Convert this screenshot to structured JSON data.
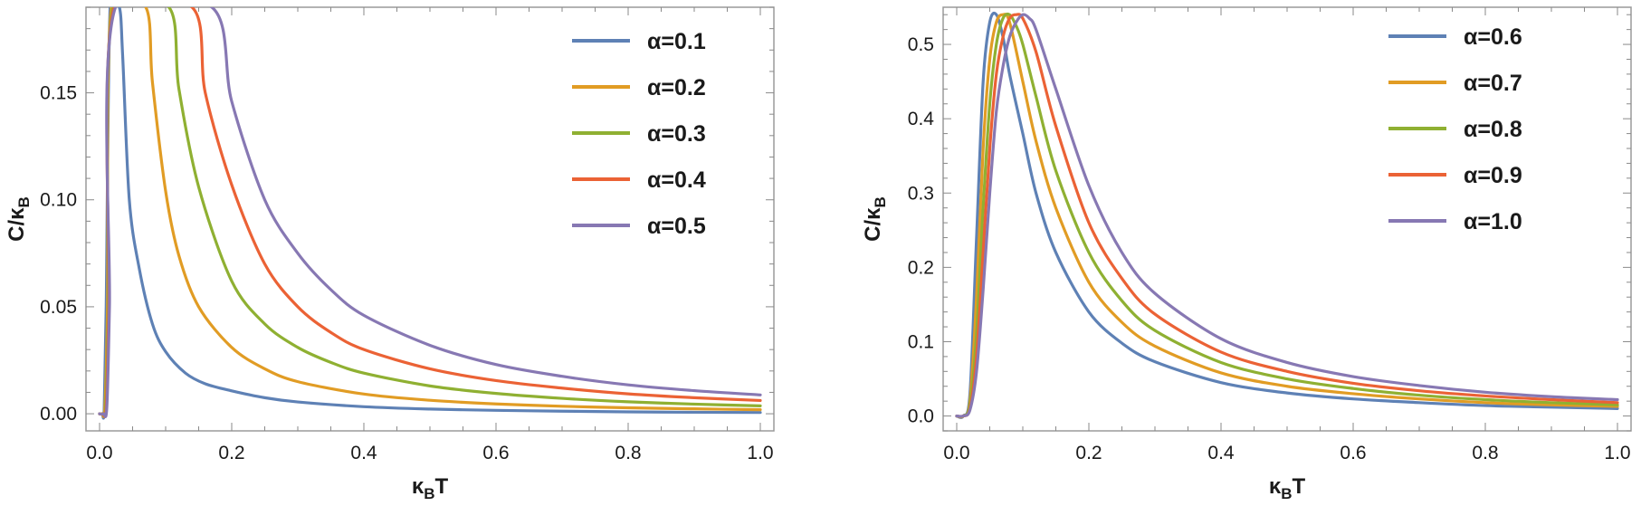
{
  "chart_data": [
    {
      "type": "line",
      "title": "",
      "xlabel": "κBT",
      "ylabel": "C/κB",
      "xlim": [
        0,
        1.0
      ],
      "ylim": [
        -0.008,
        0.19
      ],
      "xticks": [
        0.0,
        0.2,
        0.4,
        0.6,
        0.8,
        1.0
      ],
      "xtick_labels": [
        "0.0",
        "0.2",
        "0.4",
        "0.6",
        "0.8",
        "1.0"
      ],
      "yticks": [
        0.0,
        0.05,
        0.1,
        0.15
      ],
      "ytick_labels": [
        "0.00",
        "0.05",
        "0.10",
        "0.15"
      ],
      "grid": false,
      "legend_position": "top-right",
      "series": [
        {
          "name": "α=0.1",
          "color": "#5E81B5",
          "x": [
            0,
            0.004,
            0.007,
            0.01,
            0.016,
            0.03,
            0.035,
            0.045,
            0.06,
            0.08,
            0.1,
            0.13,
            0.16,
            0.2,
            0.25,
            0.3,
            0.4,
            0.5,
            0.6,
            0.7,
            0.8,
            0.9,
            1.0
          ],
          "y": [
            0,
            0,
            0.002,
            0.05,
            0.19,
            0.19,
            0.167,
            0.1,
            0.068,
            0.042,
            0.029,
            0.019,
            0.014,
            0.0107,
            0.0075,
            0.0055,
            0.0033,
            0.0022,
            0.0016,
            0.0012,
            0.0009,
            0.0007,
            0.0006
          ]
        },
        {
          "name": "α=0.2",
          "color": "#E19C24",
          "x": [
            0,
            0.004,
            0.008,
            0.012,
            0.018,
            0.07,
            0.08,
            0.1,
            0.12,
            0.15,
            0.2,
            0.25,
            0.3,
            0.4,
            0.5,
            0.6,
            0.7,
            0.8,
            0.9,
            1.0
          ],
          "y": [
            0,
            0,
            0.003,
            0.05,
            0.19,
            0.19,
            0.155,
            0.104,
            0.074,
            0.05,
            0.031,
            0.021,
            0.015,
            0.0092,
            0.0063,
            0.0046,
            0.0035,
            0.0028,
            0.0023,
            0.0019
          ]
        },
        {
          "name": "α=0.3",
          "color": "#8FB032",
          "x": [
            0,
            0.005,
            0.009,
            0.013,
            0.02,
            0.105,
            0.12,
            0.15,
            0.2,
            0.25,
            0.3,
            0.35,
            0.4,
            0.5,
            0.6,
            0.7,
            0.8,
            0.9,
            1.0
          ],
          "y": [
            0,
            0,
            0.003,
            0.05,
            0.19,
            0.19,
            0.152,
            0.106,
            0.062,
            0.042,
            0.031,
            0.024,
            0.019,
            0.013,
            0.0095,
            0.0072,
            0.0056,
            0.0045,
            0.0037
          ]
        },
        {
          "name": "α=0.4",
          "color": "#EB6235",
          "x": [
            0,
            0.005,
            0.01,
            0.014,
            0.022,
            0.14,
            0.16,
            0.2,
            0.25,
            0.3,
            0.35,
            0.4,
            0.5,
            0.6,
            0.7,
            0.8,
            0.9,
            1.0
          ],
          "y": [
            0,
            0,
            0.003,
            0.05,
            0.19,
            0.19,
            0.15,
            0.107,
            0.07,
            0.05,
            0.038,
            0.03,
            0.021,
            0.0155,
            0.012,
            0.0093,
            0.0075,
            0.0062
          ]
        },
        {
          "name": "α=0.5",
          "color": "#8778B3",
          "x": [
            0,
            0.006,
            0.011,
            0.015,
            0.024,
            0.17,
            0.2,
            0.25,
            0.3,
            0.35,
            0.4,
            0.5,
            0.6,
            0.7,
            0.8,
            0.9,
            1.0
          ],
          "y": [
            0,
            0,
            0.003,
            0.05,
            0.19,
            0.19,
            0.146,
            0.1,
            0.075,
            0.058,
            0.046,
            0.032,
            0.023,
            0.0175,
            0.0135,
            0.0108,
            0.0088
          ]
        }
      ]
    },
    {
      "type": "line",
      "title": "",
      "xlabel": "κBT",
      "ylabel": "C/κB",
      "xlim": [
        0,
        1.0
      ],
      "ylim": [
        -0.02,
        0.55
      ],
      "xticks": [
        0.0,
        0.2,
        0.4,
        0.6,
        0.8,
        1.0
      ],
      "xtick_labels": [
        "0.0",
        "0.2",
        "0.4",
        "0.6",
        "0.8",
        "1.0"
      ],
      "yticks": [
        0.0,
        0.1,
        0.2,
        0.3,
        0.4,
        0.5
      ],
      "ytick_labels": [
        "0.0",
        "0.1",
        "0.2",
        "0.3",
        "0.4",
        "0.5"
      ],
      "grid": false,
      "legend_position": "top-right",
      "series": [
        {
          "name": "α=0.6",
          "color": "#5E81B5",
          "x": [
            0,
            0.01,
            0.02,
            0.03,
            0.04,
            0.05,
            0.06,
            0.07,
            0.08,
            0.1,
            0.12,
            0.15,
            0.2,
            0.25,
            0.3,
            0.4,
            0.5,
            0.6,
            0.7,
            0.8,
            0.9,
            1.0
          ],
          "y": [
            0,
            0,
            0.03,
            0.24,
            0.45,
            0.53,
            0.54,
            0.51,
            0.46,
            0.38,
            0.3,
            0.22,
            0.14,
            0.098,
            0.073,
            0.045,
            0.031,
            0.023,
            0.018,
            0.014,
            0.012,
            0.01
          ]
        },
        {
          "name": "α=0.7",
          "color": "#E19C24",
          "x": [
            0,
            0.01,
            0.02,
            0.03,
            0.04,
            0.05,
            0.06,
            0.07,
            0.08,
            0.1,
            0.12,
            0.15,
            0.2,
            0.25,
            0.3,
            0.4,
            0.5,
            0.6,
            0.7,
            0.8,
            0.9,
            1.0
          ],
          "y": [
            0,
            0,
            0.02,
            0.16,
            0.36,
            0.48,
            0.53,
            0.54,
            0.53,
            0.45,
            0.37,
            0.28,
            0.18,
            0.126,
            0.094,
            0.058,
            0.04,
            0.03,
            0.023,
            0.018,
            0.015,
            0.013
          ]
        },
        {
          "name": "α=0.8",
          "color": "#8FB032",
          "x": [
            0,
            0.01,
            0.02,
            0.03,
            0.04,
            0.05,
            0.06,
            0.07,
            0.08,
            0.09,
            0.1,
            0.12,
            0.15,
            0.2,
            0.25,
            0.3,
            0.4,
            0.5,
            0.6,
            0.7,
            0.8,
            0.9,
            1.0
          ],
          "y": [
            0,
            0,
            0.015,
            0.11,
            0.28,
            0.42,
            0.5,
            0.535,
            0.54,
            0.525,
            0.5,
            0.43,
            0.33,
            0.22,
            0.155,
            0.115,
            0.072,
            0.05,
            0.037,
            0.028,
            0.022,
            0.018,
            0.015
          ]
        },
        {
          "name": "α=0.9",
          "color": "#EB6235",
          "x": [
            0,
            0.01,
            0.02,
            0.03,
            0.04,
            0.05,
            0.06,
            0.07,
            0.08,
            0.09,
            0.1,
            0.12,
            0.15,
            0.2,
            0.25,
            0.3,
            0.4,
            0.5,
            0.6,
            0.7,
            0.8,
            0.9,
            1.0
          ],
          "y": [
            0,
            0,
            0.01,
            0.08,
            0.22,
            0.36,
            0.46,
            0.51,
            0.535,
            0.54,
            0.535,
            0.49,
            0.39,
            0.26,
            0.185,
            0.137,
            0.086,
            0.06,
            0.044,
            0.034,
            0.027,
            0.022,
            0.018
          ]
        },
        {
          "name": "α=1.0",
          "color": "#8778B3",
          "x": [
            0,
            0.01,
            0.02,
            0.03,
            0.04,
            0.05,
            0.06,
            0.07,
            0.08,
            0.09,
            0.1,
            0.11,
            0.12,
            0.15,
            0.2,
            0.25,
            0.3,
            0.4,
            0.5,
            0.6,
            0.7,
            0.8,
            0.9,
            1.0
          ],
          "y": [
            0,
            0,
            0.008,
            0.06,
            0.17,
            0.3,
            0.41,
            0.47,
            0.51,
            0.53,
            0.54,
            0.535,
            0.52,
            0.44,
            0.31,
            0.22,
            0.165,
            0.104,
            0.072,
            0.053,
            0.041,
            0.032,
            0.026,
            0.022
          ]
        }
      ]
    }
  ]
}
